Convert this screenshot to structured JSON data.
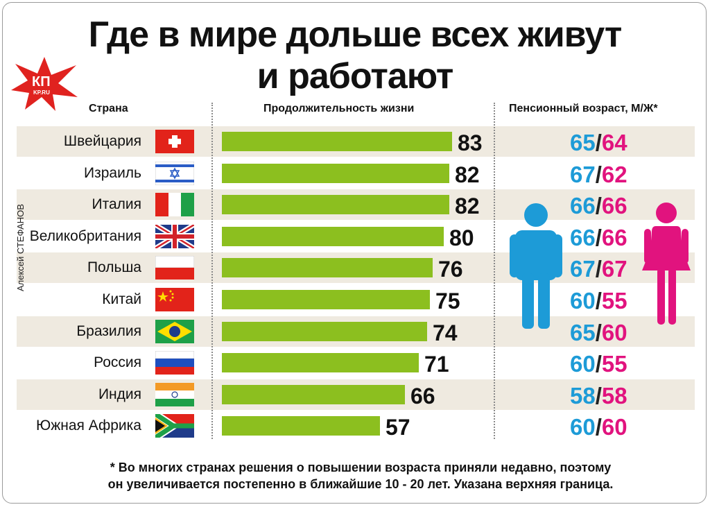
{
  "title_line1": "Где в мире дольше всех живут",
  "title_line2": "и работают",
  "logo_text": "КП",
  "logo_sub": "KP.RU",
  "headers": {
    "country": "Страна",
    "life": "Продолжительность жизни",
    "retirement": "Пенсионный возраст, М/Ж*"
  },
  "author": "Алексей СТЕФАНОВ",
  "footnote_line1": "* Во многих странах решения о повышении возраста приняли недавно, поэтому",
  "footnote_line2": "он увеличивается постепенно в ближайшие 10 - 20 лет. Указана верхняя граница.",
  "colors": {
    "bar": "#8cbf1f",
    "male": "#1d9bd7",
    "female": "#e1137e",
    "band": "#efeae0"
  },
  "chart_data": {
    "type": "bar",
    "orientation": "horizontal",
    "xlim": [
      0,
      83
    ],
    "categories": [
      "Швейцария",
      "Израиль",
      "Италия",
      "Великобритания",
      "Польша",
      "Китай",
      "Бразилия",
      "Россия",
      "Индия",
      "Южная Африка"
    ],
    "values": [
      83,
      82,
      82,
      80,
      76,
      75,
      74,
      71,
      66,
      57
    ],
    "retirement_male": [
      65,
      67,
      66,
      66,
      67,
      60,
      65,
      60,
      58,
      60
    ],
    "retirement_female": [
      64,
      62,
      66,
      66,
      67,
      55,
      60,
      55,
      58,
      60
    ],
    "flags": [
      "switzerland-flag",
      "israel-flag",
      "italy-flag",
      "uk-flag",
      "poland-flag",
      "china-flag",
      "brazil-flag",
      "russia-flag",
      "india-flag",
      "south-africa-flag"
    ]
  }
}
